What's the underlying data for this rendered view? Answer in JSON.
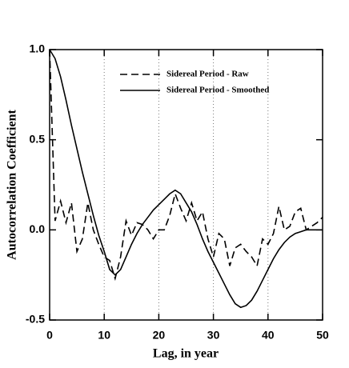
{
  "chart_data": {
    "type": "line",
    "x_label": "Lag, in year",
    "y_label": "Autocorrelation Coefficient",
    "x": [
      0,
      1,
      2,
      3,
      4,
      5,
      6,
      7,
      8,
      9,
      10,
      11,
      12,
      13,
      14,
      15,
      16,
      17,
      18,
      19,
      20,
      21,
      22,
      23,
      24,
      25,
      26,
      27,
      28,
      29,
      30,
      31,
      32,
      33,
      34,
      35,
      36,
      37,
      38,
      39,
      40,
      41,
      42,
      43,
      44,
      45,
      46,
      47,
      48,
      49,
      50
    ],
    "series": [
      {
        "name": "Sidereal Period - Raw",
        "color": "#000000",
        "dash": true,
        "values": [
          1.0,
          0.05,
          0.16,
          0.04,
          0.15,
          -0.12,
          -0.05,
          0.15,
          0.0,
          -0.08,
          -0.15,
          -0.17,
          -0.27,
          -0.15,
          0.05,
          -0.03,
          0.04,
          0.03,
          0.0,
          -0.05,
          0.0,
          0.0,
          0.08,
          0.2,
          0.12,
          0.05,
          0.15,
          0.05,
          0.1,
          -0.05,
          -0.15,
          -0.02,
          -0.05,
          -0.2,
          -0.1,
          -0.08,
          -0.12,
          -0.15,
          -0.2,
          -0.05,
          -0.08,
          -0.02,
          0.13,
          0.0,
          0.02,
          0.1,
          0.12,
          0.0,
          0.02,
          0.04,
          0.07
        ]
      },
      {
        "name": "Sidereal Period - Smoothed",
        "color": "#000000",
        "dash": false,
        "values": [
          1.0,
          0.95,
          0.85,
          0.72,
          0.58,
          0.45,
          0.32,
          0.2,
          0.08,
          -0.03,
          -0.12,
          -0.22,
          -0.25,
          -0.22,
          -0.15,
          -0.08,
          -0.02,
          0.03,
          0.07,
          0.11,
          0.14,
          0.17,
          0.2,
          0.22,
          0.2,
          0.15,
          0.1,
          0.03,
          -0.05,
          -0.12,
          -0.18,
          -0.24,
          -0.3,
          -0.36,
          -0.41,
          -0.43,
          -0.42,
          -0.39,
          -0.34,
          -0.28,
          -0.22,
          -0.16,
          -0.11,
          -0.07,
          -0.04,
          -0.02,
          -0.01,
          0.0,
          0.0,
          0.0,
          0.0
        ]
      }
    ],
    "xlim": [
      0,
      50
    ],
    "xticks": [
      0,
      10,
      20,
      30,
      40,
      50
    ],
    "ylim": [
      -0.5,
      1.0
    ],
    "yticks": [
      -0.5,
      {
        "value": 0,
        "label": "0.0"
      },
      0.5,
      {
        "value": 1,
        "label": "1.0"
      }
    ],
    "x_grid": [
      10,
      20,
      30,
      40
    ],
    "legend": "upper right"
  }
}
